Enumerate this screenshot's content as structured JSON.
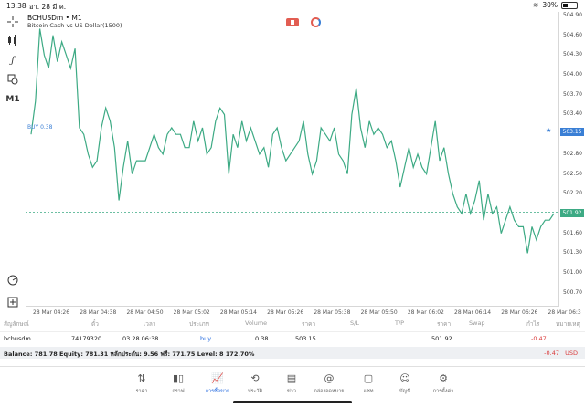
{
  "status_bar": {
    "time": "13:38",
    "date": "อา. 28 มี.ค.",
    "battery": "30%",
    "battery_level": 0.3
  },
  "chart": {
    "symbol": "BCHUSDm • M1",
    "description": "Bitcoin Cash vs US Dollar(1500)",
    "buy_label": "BUY 0.38"
  },
  "toolbar": {
    "timeframe": "M1"
  },
  "chart_data": {
    "type": "line",
    "line_color": "#3daa84",
    "ylim": [
      500.6,
      504.9
    ],
    "price_ticks": [
      "504.90",
      "504.60",
      "504.30",
      "504.00",
      "503.70",
      "503.40",
      "503.15",
      "502.80",
      "502.50",
      "502.20",
      "501.92",
      "501.60",
      "501.30",
      "501.00",
      "500.70"
    ],
    "time_ticks": [
      "28 Mar 04:26",
      "28 Mar 04:38",
      "28 Mar 04:50",
      "28 Mar 05:02",
      "28 Mar 05:14",
      "28 Mar 05:26",
      "28 Mar 05:38",
      "28 Mar 05:50",
      "28 Mar 06:02",
      "28 Mar 06:14",
      "28 Mar 06:26",
      "28 Mar 06:3"
    ],
    "buy_price": 503.15,
    "current_price": 501.92,
    "buy_color": "#3a7fd5",
    "current_color": "#3daa84",
    "values": [
      503.1,
      503.6,
      504.7,
      504.3,
      504.1,
      504.6,
      504.2,
      504.5,
      504.3,
      504.1,
      504.4,
      503.2,
      503.1,
      502.8,
      502.6,
      502.7,
      503.2,
      503.5,
      503.3,
      502.9,
      502.1,
      502.6,
      503.0,
      502.5,
      502.7,
      502.7,
      502.7,
      502.9,
      503.1,
      502.9,
      502.8,
      503.1,
      503.2,
      503.1,
      503.1,
      502.9,
      502.9,
      503.3,
      503.0,
      503.2,
      502.8,
      502.9,
      503.3,
      503.5,
      503.4,
      502.5,
      503.1,
      502.9,
      503.3,
      503.0,
      503.2,
      503.0,
      502.8,
      502.9,
      502.6,
      503.1,
      503.2,
      502.9,
      502.7,
      502.8,
      502.9,
      503.0,
      503.3,
      502.8,
      502.5,
      502.7,
      503.2,
      503.1,
      503.0,
      503.2,
      502.8,
      502.7,
      502.5,
      503.4,
      503.8,
      503.2,
      502.9,
      503.3,
      503.1,
      503.2,
      503.1,
      502.9,
      503.0,
      502.7,
      502.3,
      502.6,
      502.9,
      502.6,
      502.8,
      502.6,
      502.5,
      502.9,
      503.3,
      502.7,
      502.9,
      502.5,
      502.2,
      502.0,
      501.9,
      502.2,
      501.9,
      502.1,
      502.4,
      501.8,
      502.2,
      501.9,
      502.0,
      501.6,
      501.8,
      502.0,
      501.8,
      501.7,
      501.7,
      501.3,
      501.7,
      501.5,
      501.7,
      501.8,
      501.8,
      501.9
    ]
  },
  "positions_table": {
    "headers": [
      "สัญลักษณ์",
      "ตั๋ว",
      "เวลา",
      "ประเภท",
      "Volume",
      "ราคา",
      "S/L",
      "T/P",
      "ราคา",
      "Swap",
      "กำไร",
      "หมายเหตุ"
    ],
    "row": {
      "symbol": "bchusdm",
      "ticket": "74179320",
      "time": "03.28 06:38",
      "type": "buy",
      "volume": "0.38",
      "open_price": "503.15",
      "price": "501.92",
      "profit": "-0.47"
    }
  },
  "balance": {
    "text": "Balance: 781.78 Equity: 781.31 หลักประกัน: 9.56 ฟรี: 771.75 Level: 8 172.70%",
    "profit": "-0.47",
    "currency": "USD"
  },
  "nav": [
    {
      "label": "ราคา",
      "icon": "quotes-icon"
    },
    {
      "label": "กราฟ",
      "icon": "chart-icon"
    },
    {
      "label": "การซื้อขาย",
      "icon": "trade-icon",
      "active": true
    },
    {
      "label": "ประวัติ",
      "icon": "history-icon"
    },
    {
      "label": "ข่าว",
      "icon": "news-icon"
    },
    {
      "label": "กล่องจดหมาย",
      "icon": "mailbox-icon"
    },
    {
      "label": "แชท",
      "icon": "chat-icon"
    },
    {
      "label": "บัญชี",
      "icon": "account-icon"
    },
    {
      "label": "การตั้งค่า",
      "icon": "settings-icon"
    }
  ],
  "colors": {
    "accent": "#2a6ee0",
    "loss": "#d93a3a"
  }
}
